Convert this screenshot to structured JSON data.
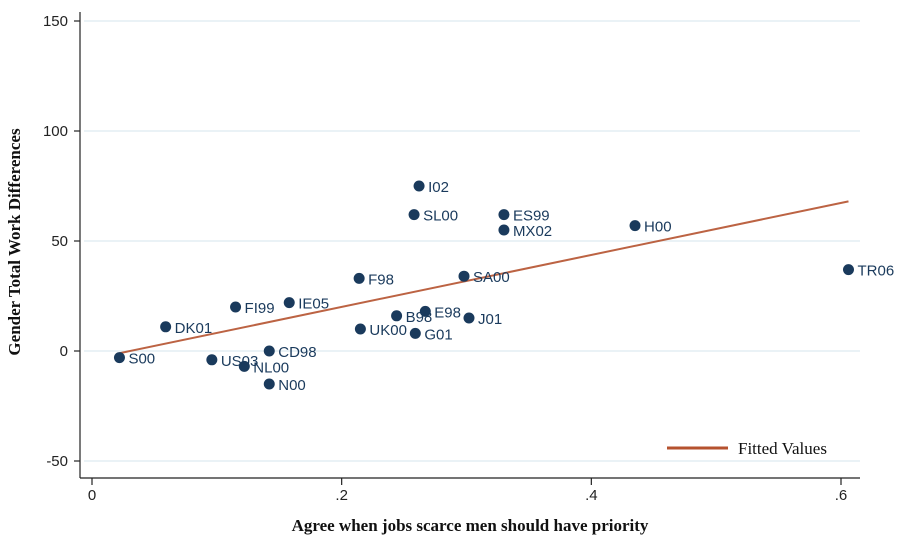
{
  "chart_data": {
    "type": "scatter",
    "xlabel": "Agree when jobs scarce men should have priority",
    "ylabel": "Gender Total Work Differences",
    "xlim": [
      0,
      0.61
    ],
    "ylim": [
      -55,
      155
    ],
    "xticks": [
      {
        "value": 0,
        "label": "0"
      },
      {
        "value": 0.2,
        "label": ".2"
      },
      {
        "value": 0.4,
        "label": ".4"
      },
      {
        "value": 0.6,
        "label": ".6"
      }
    ],
    "yticks": [
      {
        "value": -50,
        "label": "-50"
      },
      {
        "value": 0,
        "label": "0"
      },
      {
        "value": 50,
        "label": "50"
      },
      {
        "value": 100,
        "label": "100"
      },
      {
        "value": 150,
        "label": "150"
      }
    ],
    "grid": true,
    "points": [
      {
        "label": "S00",
        "x": 0.022,
        "y": -3
      },
      {
        "label": "DK01",
        "x": 0.059,
        "y": 11
      },
      {
        "label": "US03",
        "x": 0.096,
        "y": -4
      },
      {
        "label": "FI99",
        "x": 0.115,
        "y": 20
      },
      {
        "label": "NL00",
        "x": 0.122,
        "y": -7
      },
      {
        "label": "CD98",
        "x": 0.142,
        "y": 0
      },
      {
        "label": "N00",
        "x": 0.142,
        "y": -15
      },
      {
        "label": "IE05",
        "x": 0.158,
        "y": 22
      },
      {
        "label": "F98",
        "x": 0.214,
        "y": 33
      },
      {
        "label": "UK00",
        "x": 0.215,
        "y": 10
      },
      {
        "label": "B98",
        "x": 0.244,
        "y": 16
      },
      {
        "label": "SL00",
        "x": 0.258,
        "y": 62
      },
      {
        "label": "G01",
        "x": 0.259,
        "y": 8
      },
      {
        "label": "I02",
        "x": 0.262,
        "y": 75
      },
      {
        "label": "E98",
        "x": 0.267,
        "y": 18
      },
      {
        "label": "SA00",
        "x": 0.298,
        "y": 34
      },
      {
        "label": "J01",
        "x": 0.302,
        "y": 15
      },
      {
        "label": "ES99",
        "x": 0.33,
        "y": 62
      },
      {
        "label": "MX02",
        "x": 0.33,
        "y": 55
      },
      {
        "label": "H00",
        "x": 0.435,
        "y": 57
      },
      {
        "label": "TR06",
        "x": 0.606,
        "y": 37
      }
    ],
    "fit_line": {
      "name": "Fitted Values",
      "x": [
        0.022,
        0.606
      ],
      "y": [
        -1,
        68
      ],
      "color": "#b5522f"
    },
    "legend": {
      "position": "bottom-right",
      "entries": [
        "Fitted Values"
      ]
    },
    "colors": {
      "points": "#1a3a5c",
      "labels": "#1a3a5c",
      "grid": "#e4eef3"
    }
  }
}
